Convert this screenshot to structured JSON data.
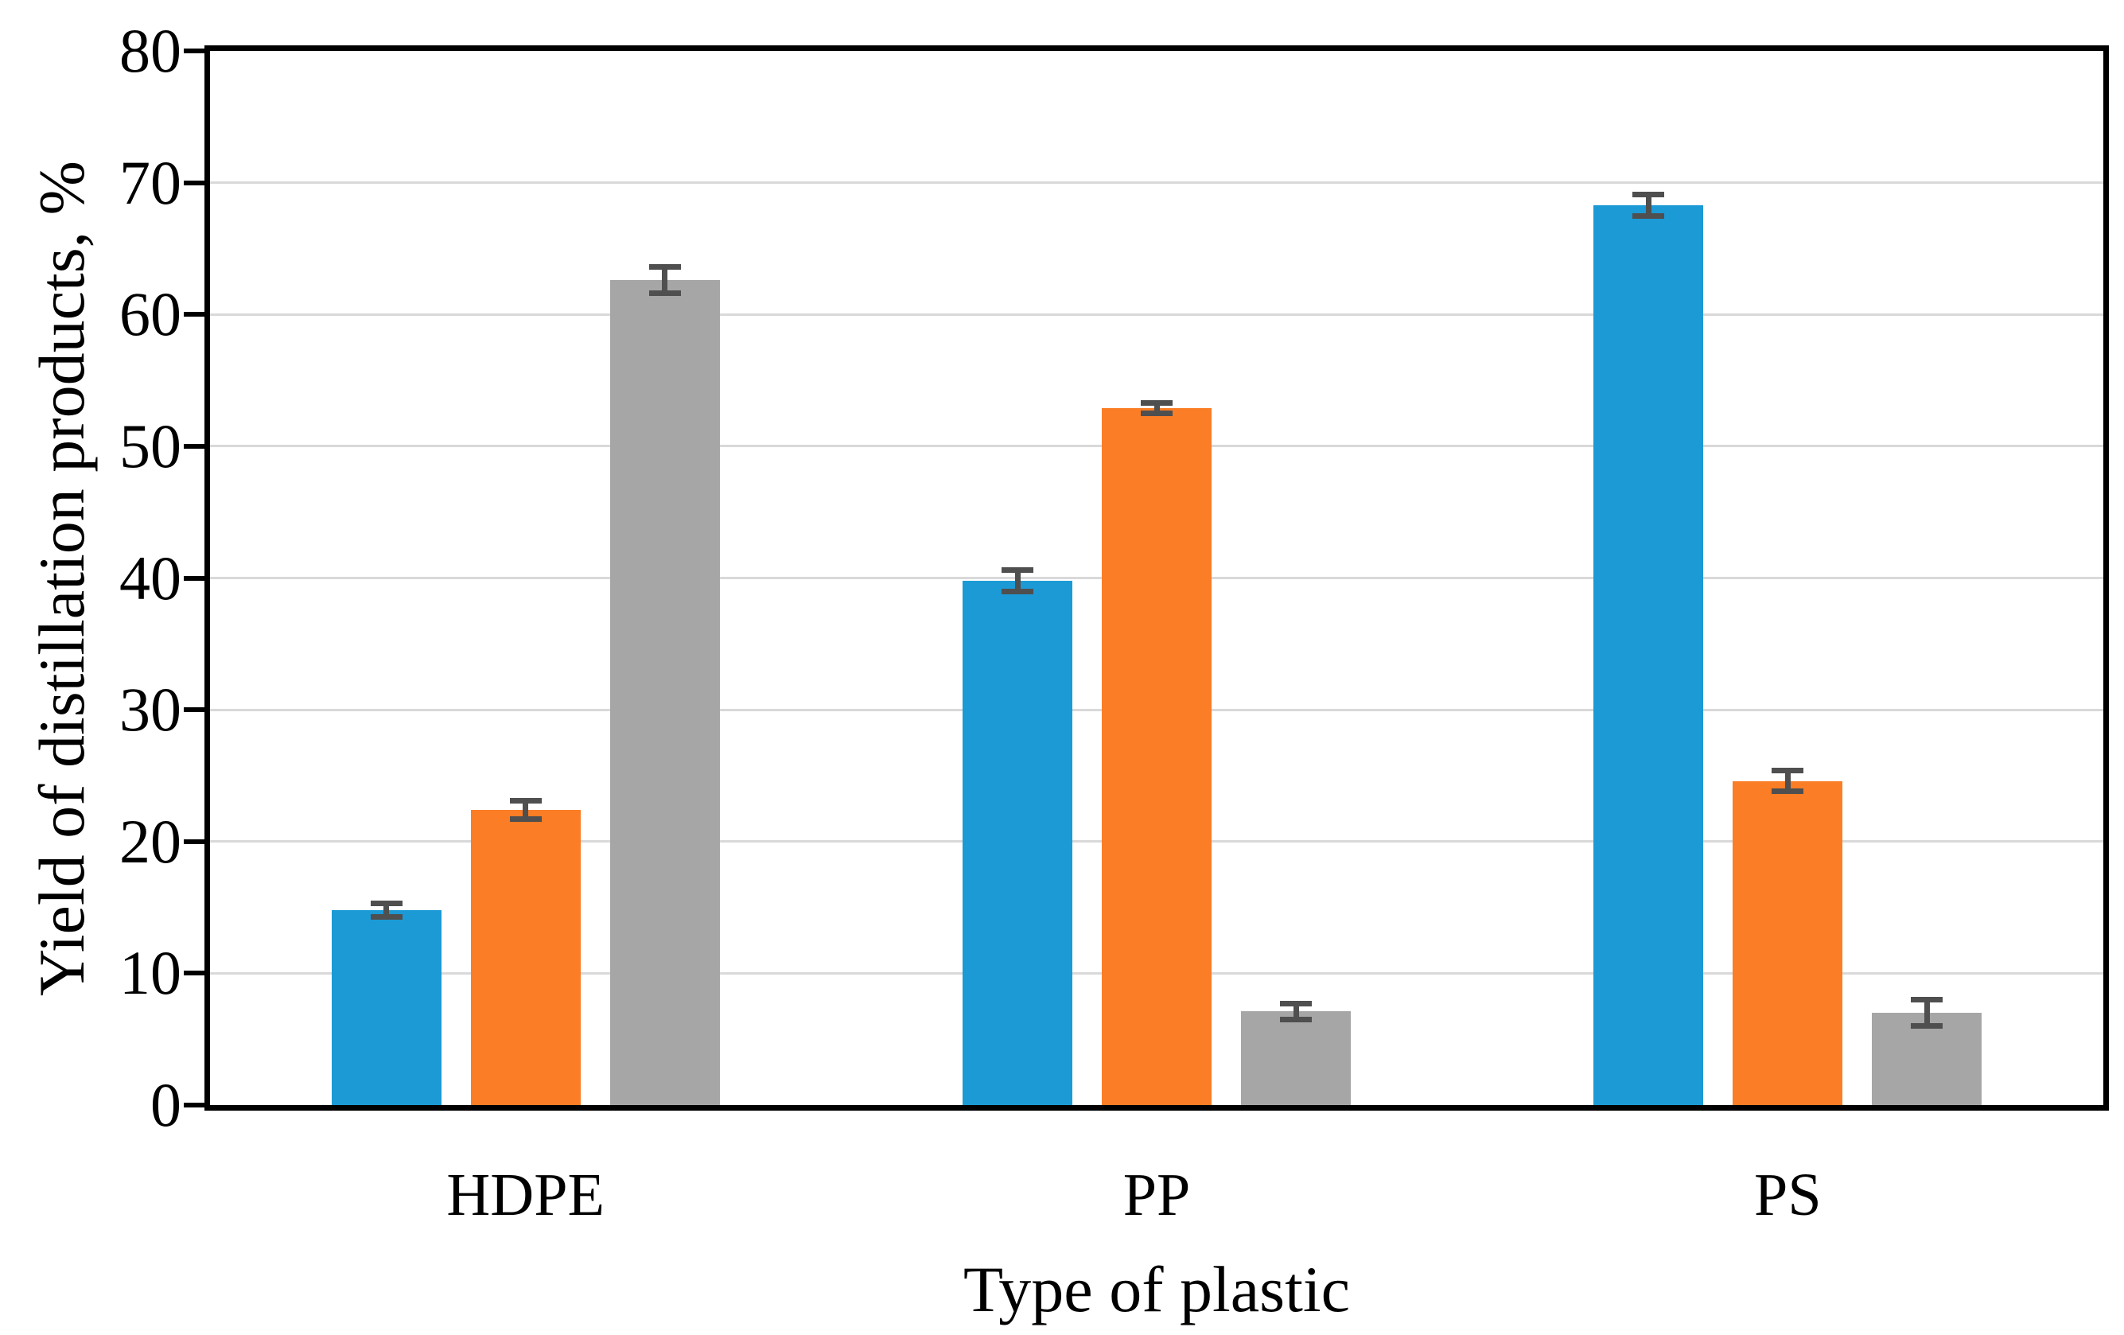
{
  "chart_data": {
    "type": "bar",
    "title": "",
    "xlabel": "Type of plastic",
    "ylabel": "Yield of distillation products, %",
    "categories": [
      "HDPE",
      "PP",
      "PS"
    ],
    "series": [
      {
        "name": "blue-series",
        "color": "#1B9AD6",
        "values": [
          14.8,
          39.8,
          68.3
        ],
        "errors": [
          0.5,
          0.8,
          0.8
        ]
      },
      {
        "name": "orange-series",
        "color": "#FB7D25",
        "values": [
          22.4,
          52.9,
          24.6
        ],
        "errors": [
          0.7,
          0.4,
          0.8
        ]
      },
      {
        "name": "gray-series",
        "color": "#A6A6A6",
        "values": [
          62.6,
          7.1,
          7.0
        ],
        "errors": [
          1.0,
          0.6,
          1.0
        ]
      }
    ],
    "ylim": [
      0,
      80
    ],
    "yticks": [
      0,
      10,
      20,
      30,
      40,
      50,
      60,
      70,
      80
    ],
    "grid": "horizontal-gridlines",
    "legend": "none",
    "error_bars": "yes",
    "colors": {
      "gridline": "#D9D9D9",
      "axis": "#000000",
      "error_bar": "#4F4F4F",
      "background": "#FFFFFF"
    }
  }
}
